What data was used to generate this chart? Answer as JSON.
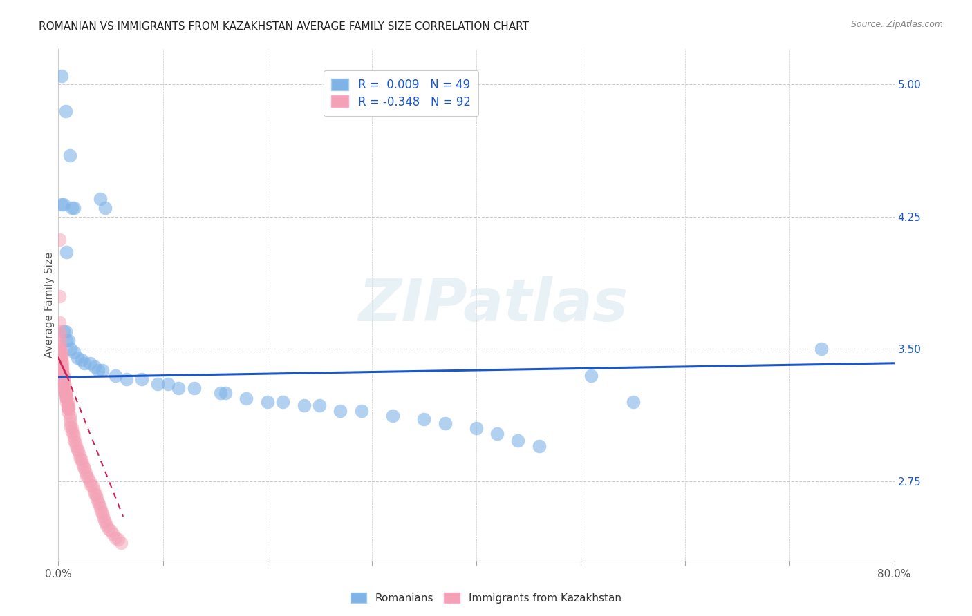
{
  "title": "ROMANIAN VS IMMIGRANTS FROM KAZAKHSTAN AVERAGE FAMILY SIZE CORRELATION CHART",
  "source": "Source: ZipAtlas.com",
  "ylabel": "Average Family Size",
  "xlim": [
    0.0,
    0.8
  ],
  "ylim": [
    2.3,
    5.2
  ],
  "yticks": [
    2.75,
    3.5,
    4.25,
    5.0
  ],
  "xticks": [
    0.0,
    0.1,
    0.2,
    0.3,
    0.4,
    0.5,
    0.6,
    0.7,
    0.8
  ],
  "xtick_labels": [
    "0.0%",
    "",
    "",
    "",
    "",
    "",
    "",
    "",
    "80.0%"
  ],
  "background_color": "#ffffff",
  "grid_color": "#cccccc",
  "legend_label1": "R =  0.009   N = 49",
  "legend_label2": "R = -0.348   N = 92",
  "legend_color1": "#7fb3e8",
  "legend_color2": "#f4a0b5",
  "watermark_text": "ZIPatlas",
  "blue_scatter_x": [
    0.003,
    0.007,
    0.011,
    0.013,
    0.015,
    0.04,
    0.045,
    0.003,
    0.005,
    0.008,
    0.005,
    0.007,
    0.008,
    0.01,
    0.012,
    0.015,
    0.018,
    0.022,
    0.025,
    0.03,
    0.035,
    0.038,
    0.042,
    0.055,
    0.065,
    0.08,
    0.095,
    0.105,
    0.115,
    0.13,
    0.155,
    0.16,
    0.18,
    0.2,
    0.215,
    0.235,
    0.25,
    0.27,
    0.29,
    0.32,
    0.35,
    0.37,
    0.4,
    0.42,
    0.44,
    0.46,
    0.51,
    0.55,
    0.73
  ],
  "blue_scatter_y": [
    5.05,
    4.85,
    4.6,
    4.3,
    4.3,
    4.35,
    4.3,
    4.32,
    4.32,
    4.05,
    3.6,
    3.6,
    3.55,
    3.55,
    3.5,
    3.48,
    3.45,
    3.44,
    3.42,
    3.42,
    3.4,
    3.38,
    3.38,
    3.35,
    3.33,
    3.33,
    3.3,
    3.3,
    3.28,
    3.28,
    3.25,
    3.25,
    3.22,
    3.2,
    3.2,
    3.18,
    3.18,
    3.15,
    3.15,
    3.12,
    3.1,
    3.08,
    3.05,
    3.02,
    2.98,
    2.95,
    3.35,
    3.2,
    3.5
  ],
  "pink_scatter_x": [
    0.001,
    0.001,
    0.001,
    0.001,
    0.002,
    0.002,
    0.002,
    0.002,
    0.003,
    0.003,
    0.003,
    0.003,
    0.004,
    0.004,
    0.004,
    0.004,
    0.005,
    0.005,
    0.005,
    0.006,
    0.006,
    0.006,
    0.007,
    0.007,
    0.008,
    0.008,
    0.009,
    0.009,
    0.01,
    0.01,
    0.011,
    0.011,
    0.012,
    0.012,
    0.013,
    0.013,
    0.014,
    0.015,
    0.015,
    0.016,
    0.017,
    0.018,
    0.019,
    0.02,
    0.021,
    0.022,
    0.023,
    0.024,
    0.025,
    0.026,
    0.027,
    0.028,
    0.03,
    0.031,
    0.033,
    0.034,
    0.035,
    0.036,
    0.037,
    0.038,
    0.039,
    0.04,
    0.041,
    0.042,
    0.043,
    0.044,
    0.045,
    0.046,
    0.048,
    0.05,
    0.052,
    0.055,
    0.057,
    0.06,
    0.001,
    0.001,
    0.002,
    0.002,
    0.003,
    0.003,
    0.004,
    0.004,
    0.005,
    0.005,
    0.006,
    0.006,
    0.007,
    0.007,
    0.008,
    0.009,
    0.01,
    0.01
  ],
  "pink_scatter_y": [
    4.12,
    3.8,
    3.65,
    3.6,
    3.58,
    3.55,
    3.52,
    3.5,
    3.48,
    3.46,
    3.45,
    3.44,
    3.42,
    3.4,
    3.38,
    3.36,
    3.35,
    3.33,
    3.32,
    3.3,
    3.28,
    3.26,
    3.25,
    3.23,
    3.22,
    3.2,
    3.18,
    3.17,
    3.16,
    3.14,
    3.12,
    3.1,
    3.08,
    3.06,
    3.05,
    3.03,
    3.02,
    3.0,
    2.98,
    2.97,
    2.95,
    2.93,
    2.92,
    2.9,
    2.88,
    2.87,
    2.85,
    2.83,
    2.82,
    2.8,
    2.78,
    2.77,
    2.75,
    2.73,
    2.72,
    2.7,
    2.68,
    2.67,
    2.65,
    2.63,
    2.62,
    2.6,
    2.58,
    2.57,
    2.55,
    2.53,
    2.52,
    2.5,
    2.48,
    2.47,
    2.45,
    2.43,
    2.42,
    2.4,
    3.5,
    3.48,
    3.46,
    3.44,
    3.42,
    3.4,
    3.38,
    3.36,
    3.34,
    3.32,
    3.3,
    3.28,
    3.26,
    3.24,
    3.22,
    3.2,
    3.18,
    3.16
  ],
  "blue_trendline_x": [
    0.0,
    0.8
  ],
  "blue_trendline_y": [
    3.34,
    3.42
  ],
  "pink_trendline_x": [
    0.0,
    0.062
  ],
  "pink_trendline_y": [
    3.45,
    2.55
  ],
  "title_fontsize": 11,
  "axis_label_fontsize": 11,
  "tick_fontsize": 11,
  "legend_fontsize": 12
}
